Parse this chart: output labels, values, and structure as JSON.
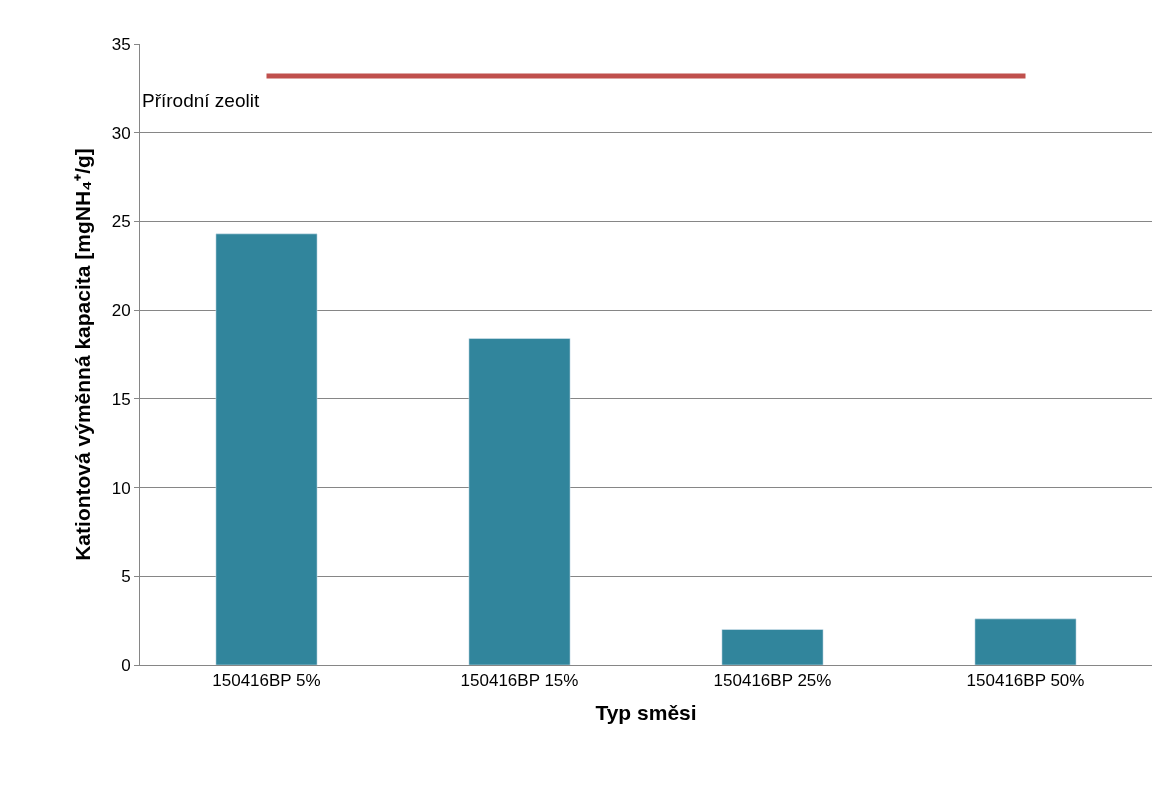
{
  "chart_data": {
    "type": "bar",
    "xlabel": "Typ směsi",
    "ylabel": "Kationtová výměnná kapacita [mgNH₄⁺/g]",
    "categories": [
      "150416BP 5%",
      "150416BP 15%",
      "150416BP 25%",
      "150416BP 50%"
    ],
    "series": [
      {
        "color": "#31859c",
        "values": [
          24.3,
          18.4,
          2.0,
          2.6
        ]
      },
      {
        "type": "line",
        "name": "Přírodní zeolit",
        "color": "#c0504d",
        "values": [
          33.2,
          33.2,
          33.2,
          33.2
        ],
        "marker": "none"
      }
    ],
    "ylim": [
      0,
      35
    ],
    "yticks": [
      0,
      5,
      10,
      15,
      20,
      25,
      30,
      35
    ],
    "grid": "y",
    "legend": false
  }
}
